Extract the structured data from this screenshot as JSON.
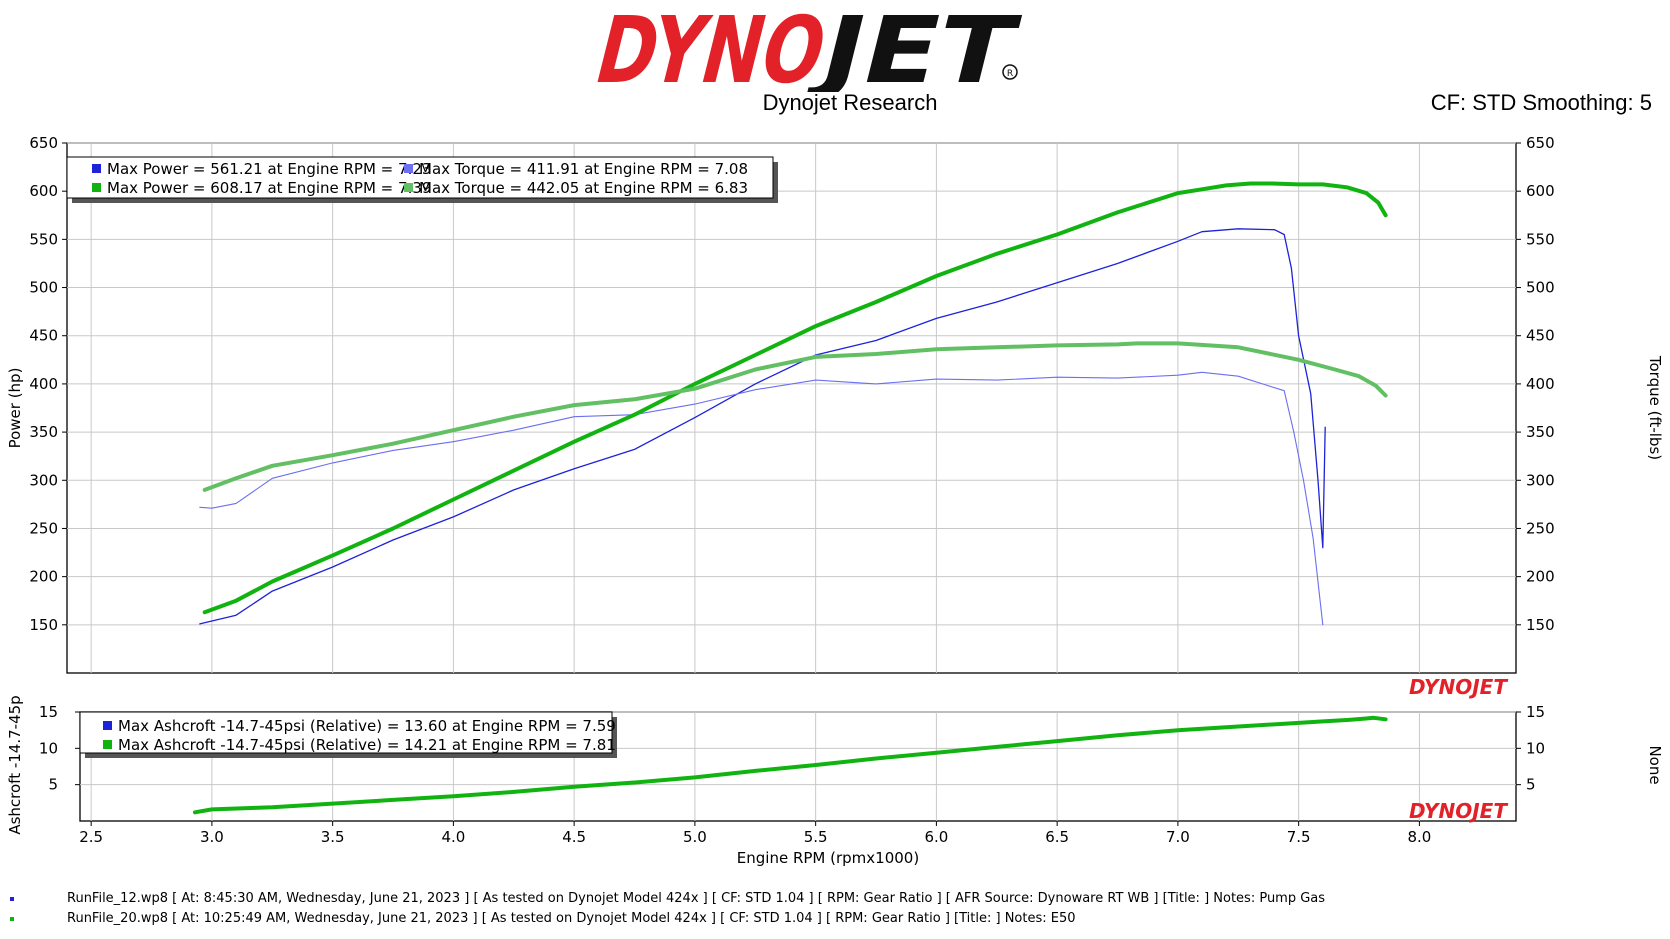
{
  "header": {
    "logo_text": "DYNOJET",
    "subtitle": "Dynojet Research",
    "cf_info": "CF: STD Smoothing: 5"
  },
  "colors": {
    "run1_power": "#1e22d8",
    "run1_torque": "#6b6ff0",
    "run2_power": "#11b311",
    "run2_torque": "#63bf63",
    "logo_red": "#e32128",
    "logo_black": "#111111"
  },
  "main_chart": {
    "y_left_label": "Power (hp)",
    "y_right_label": "Torque (ft-lbs)",
    "y_ticks": [
      "650",
      "600",
      "550",
      "500",
      "450",
      "400",
      "350",
      "300",
      "250",
      "200",
      "150"
    ],
    "legend": [
      {
        "color": "#1e22d8",
        "text": "Max Power = 561.21 at Engine RPM = 7.23"
      },
      {
        "color": "#6b6ff0",
        "text": "Max Torque = 411.91 at Engine RPM = 7.08"
      },
      {
        "color": "#11b311",
        "text": "Max Power = 608.17 at Engine RPM = 7.39"
      },
      {
        "color": "#63bf63",
        "text": "Max Torque = 442.05 at Engine RPM = 6.83"
      }
    ]
  },
  "sub_chart": {
    "y_left_label": "Ashcroft -14.7-45p",
    "y_right_label": "None",
    "y_ticks": [
      "15",
      "10",
      "5"
    ],
    "legend": [
      {
        "color": "#1e22d8",
        "text": "Max Ashcroft -14.7-45psi (Relative) = 13.60 at Engine RPM = 7.59"
      },
      {
        "color": "#11b311",
        "text": "Max Ashcroft -14.7-45psi (Relative) = 14.21 at Engine RPM = 7.81"
      }
    ]
  },
  "x_axis": {
    "label": "Engine RPM (rpmx1000)",
    "ticks": [
      "2.5",
      "3.0",
      "3.5",
      "4.0",
      "4.5",
      "5.0",
      "5.5",
      "6.0",
      "6.5",
      "7.0",
      "7.5",
      "8.0"
    ]
  },
  "watermark": "DYNOJET",
  "runs": [
    {
      "color": "#1e22d8",
      "text": "RunFile_12.wp8 [ At: 8:45:30 AM, Wednesday, June 21, 2023 ] [ As tested on Dynojet Model 424x ] [ CF: STD 1.04 ] [ RPM: Gear Ratio ] [ AFR Source: Dynoware RT WB ] [Title: ]  Notes: Pump Gas"
    },
    {
      "color": "#11b311",
      "text": "RunFile_20.wp8 [ At: 10:25:49 AM, Wednesday, June 21, 2023 ] [ As tested on Dynojet Model 424x ] [ CF: STD 1.04 ] [ RPM: Gear Ratio ] [Title: ]  Notes: E50"
    }
  ],
  "chart_data": [
    {
      "type": "line",
      "title": "",
      "xlabel": "Engine RPM (rpmx1000)",
      "ylabel": "Power (hp)",
      "y2label": "Torque (ft-lbs)",
      "xlim": [
        2.4,
        8.4
      ],
      "ylim": [
        100,
        650
      ],
      "grid": true,
      "legend_position": "top-left",
      "series": [
        {
          "color": "#1e22d8",
          "axis": "left",
          "width": 1.3,
          "x": [
            2.95,
            3.1,
            3.25,
            3.5,
            3.75,
            4.0,
            4.25,
            4.5,
            4.75,
            5.0,
            5.25,
            5.5,
            5.75,
            6.0,
            6.25,
            6.5,
            6.75,
            7.0,
            7.1,
            7.25,
            7.4,
            7.44,
            7.47,
            7.5,
            7.55,
            7.58,
            7.6,
            7.61
          ],
          "y": [
            151,
            160,
            185,
            210,
            238,
            262,
            290,
            312,
            332,
            365,
            400,
            430,
            445,
            468,
            485,
            505,
            525,
            548,
            558,
            561,
            560,
            555,
            520,
            450,
            390,
            300,
            230,
            355
          ]
        },
        {
          "color": "#6b6ff0",
          "axis": "right",
          "width": 1.1,
          "x": [
            2.95,
            3.0,
            3.1,
            3.25,
            3.5,
            3.75,
            4.0,
            4.25,
            4.5,
            4.75,
            5.0,
            5.25,
            5.5,
            5.75,
            6.0,
            6.25,
            6.5,
            6.75,
            7.0,
            7.1,
            7.25,
            7.35,
            7.44,
            7.48,
            7.52,
            7.56,
            7.6
          ],
          "y": [
            272,
            271,
            276,
            302,
            318,
            331,
            340,
            352,
            366,
            368,
            379,
            394,
            404,
            400,
            405,
            404,
            407,
            406,
            409,
            412,
            408,
            400,
            393,
            350,
            300,
            240,
            150
          ]
        },
        {
          "color": "#11b311",
          "axis": "left",
          "width": 4,
          "x": [
            2.97,
            3.1,
            3.25,
            3.5,
            3.75,
            4.0,
            4.25,
            4.5,
            4.75,
            5.0,
            5.25,
            5.5,
            5.75,
            6.0,
            6.25,
            6.5,
            6.75,
            7.0,
            7.1,
            7.2,
            7.3,
            7.39,
            7.5,
            7.6,
            7.7,
            7.78,
            7.83,
            7.86
          ],
          "y": [
            163,
            175,
            195,
            222,
            250,
            280,
            310,
            340,
            368,
            400,
            430,
            460,
            485,
            512,
            535,
            555,
            578,
            598,
            602,
            606,
            608,
            608,
            607,
            607,
            604,
            598,
            588,
            575
          ]
        },
        {
          "color": "#63bf63",
          "axis": "right",
          "width": 4,
          "x": [
            2.97,
            3.1,
            3.25,
            3.5,
            3.75,
            4.0,
            4.25,
            4.5,
            4.75,
            5.0,
            5.25,
            5.5,
            5.75,
            6.0,
            6.25,
            6.5,
            6.75,
            6.83,
            7.0,
            7.25,
            7.5,
            7.65,
            7.75,
            7.82,
            7.86
          ],
          "y": [
            290,
            302,
            315,
            326,
            338,
            352,
            366,
            378,
            384,
            395,
            415,
            428,
            431,
            436,
            438,
            440,
            441,
            442,
            442,
            438,
            425,
            415,
            408,
            398,
            388
          ]
        }
      ]
    },
    {
      "type": "line",
      "title": "",
      "xlabel": "Engine RPM (rpmx1000)",
      "ylabel": "Ashcroft -14.7-45p",
      "y2label": "None",
      "xlim": [
        2.4,
        8.4
      ],
      "ylim": [
        0,
        15
      ],
      "grid": true,
      "legend_position": "top-left",
      "series": [
        {
          "color": "#11b311",
          "axis": "left",
          "width": 4,
          "x": [
            2.93,
            3.0,
            3.25,
            3.5,
            3.75,
            4.0,
            4.25,
            4.5,
            4.75,
            5.0,
            5.25,
            5.5,
            5.75,
            6.0,
            6.25,
            6.5,
            6.75,
            7.0,
            7.25,
            7.5,
            7.6,
            7.7,
            7.78,
            7.81,
            7.86
          ],
          "y": [
            1.2,
            1.6,
            1.9,
            2.4,
            2.9,
            3.4,
            4.0,
            4.7,
            5.3,
            6.0,
            6.9,
            7.7,
            8.6,
            9.4,
            10.2,
            11.0,
            11.8,
            12.5,
            13.0,
            13.5,
            13.7,
            13.9,
            14.1,
            14.2,
            14.0
          ]
        }
      ]
    }
  ]
}
